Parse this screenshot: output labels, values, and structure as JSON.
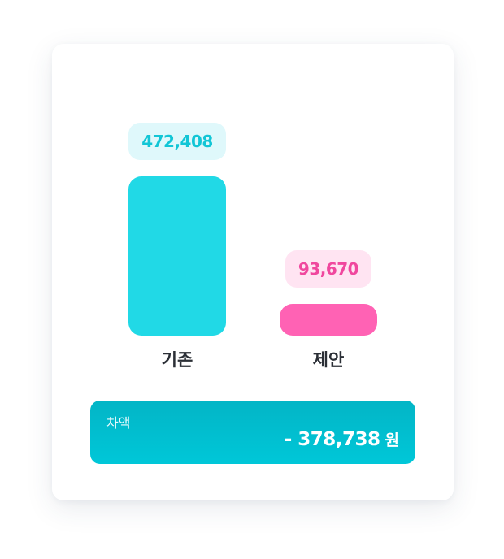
{
  "chart_data": {
    "type": "bar",
    "categories": [
      "기존",
      "제안"
    ],
    "values": [
      472408,
      93670
    ],
    "value_labels": [
      "472,408",
      "93,670"
    ],
    "colors": [
      "#21d9e6",
      "#ff62b4"
    ],
    "label_bg_colors": [
      "#dff8fb",
      "#ffe4f2"
    ],
    "label_text_colors": [
      "#12c6d6",
      "#f0479e"
    ]
  },
  "summary": {
    "label": "차액",
    "value": "- 378,738",
    "unit": "원",
    "color": "#00bfd0"
  }
}
